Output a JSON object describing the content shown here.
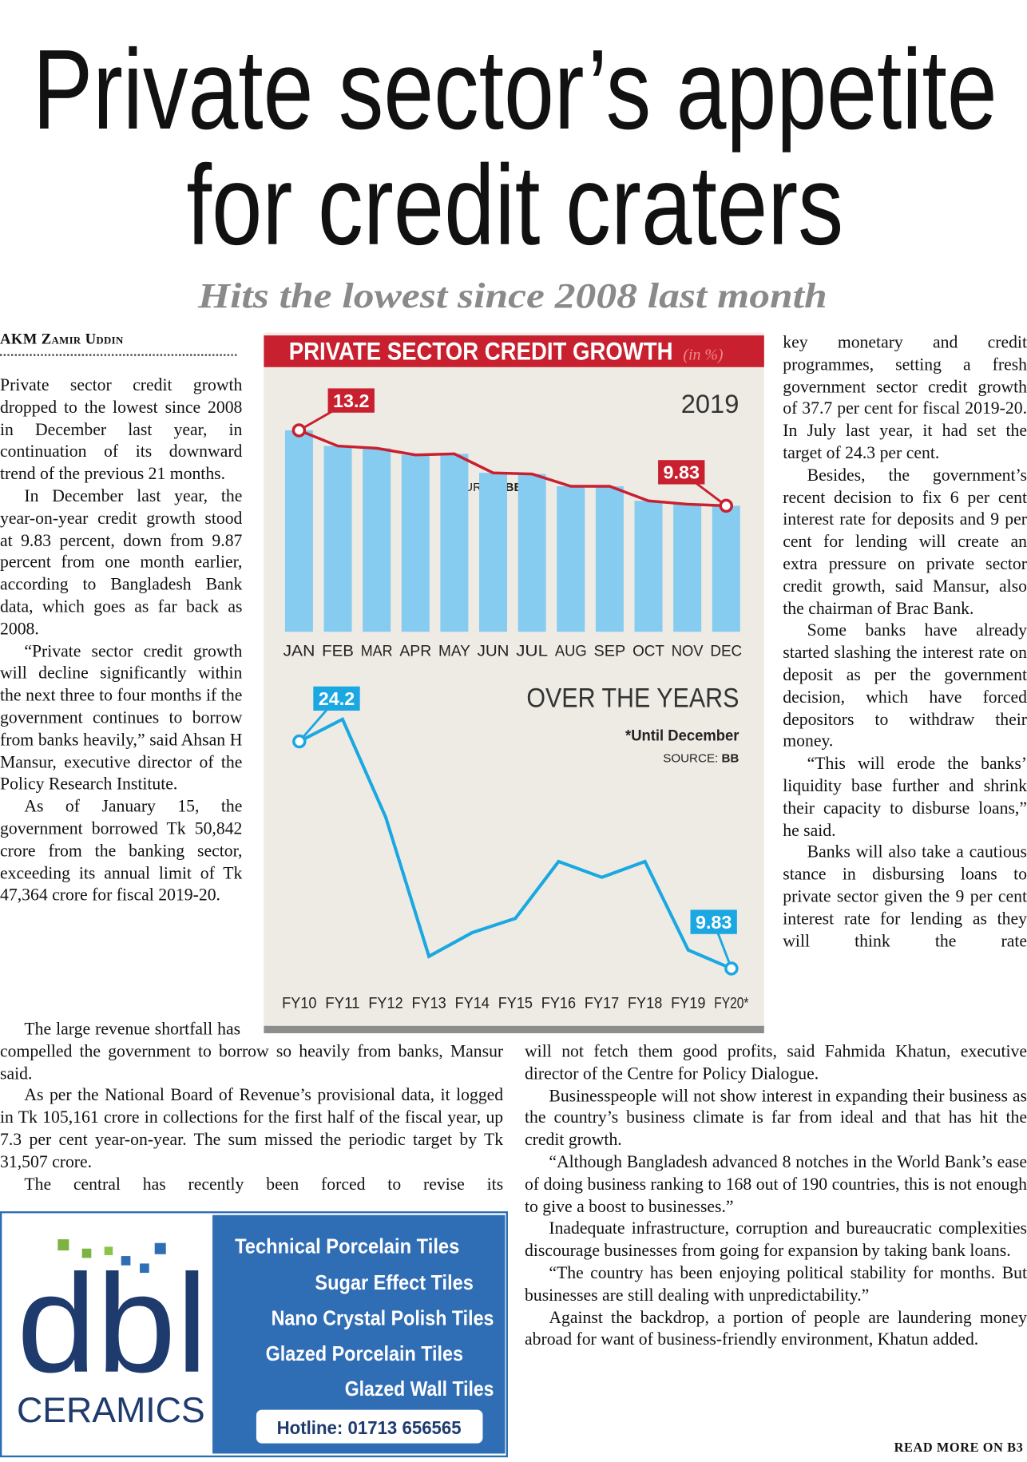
{
  "header": {
    "title_lines": [
      "Private sector’s appetite",
      "for credit craters"
    ],
    "subtitle": "Hits the lowest since 2008 last month"
  },
  "article": {
    "byline": "AKM Zamir Uddin",
    "left_column": [
      "Private sector credit growth dropped to the lowest since 2008 in December last year, in continuation of its downward trend of the previous 21 months.",
      "In December last year, the year-on-year credit growth stood at 9.83 percent, down from 9.87 percent from one month earlier, according to Bangladesh Bank data, which goes as far back as 2008.",
      "“Private sector credit growth will decline significantly within the next three to four months if the government continues to borrow from banks heavily,” said Ahsan H Mansur, executive director of the Policy Research Institute.",
      "As of January 15, the government borrowed Tk 50,842 crore from the banking sector, exceeding its annual limit of Tk 47,364 crore for fiscal 2019-20."
    ],
    "lower_left": [
      "The large revenue shortfall has compelled the government to borrow so heavily from banks, Mansur said.",
      "As per the National Board of Revenue’s provisional data, it logged in Tk 105,161 crore in collections for the first half of the fiscal year, up 7.3 per cent year-on-year. The sum missed the periodic target by Tk 31,507 crore.",
      "The central has recently been forced to revise its"
    ],
    "right_column": [
      "key monetary and credit programmes, setting a fresh government sector credit growth of 37.7 per cent for fiscal 2019-20. In July last year, it had set the target of 24.3 per cent.",
      "Besides, the government’s recent decision to fix 6 per cent interest rate for deposits and 9 per cent for lending will create an extra pressure on private sector credit growth, said Mansur, also the chairman of Brac Bank.",
      "Some banks have already started slashing the interest rate on deposit as per the government decision, which have forced depositors to withdraw their money.",
      "“This will erode the banks’ liquidity base further and shrink their capacity to disburse loans,” he said.",
      "Banks will also take a cautious stance in disbursing loans to private sector given the 9 per cent interest rate for lending as they will think the rate"
    ],
    "lower_right": [
      "will not fetch them good profits, said Fahmida Khatun, executive director of the Centre for Policy Dialogue.",
      "Businesspeople will not show interest in expanding their business as the country’s business climate is far from ideal and that has hit the credit growth.",
      "“Although Bangladesh advanced 8 notches in the World Bank’s ease of doing business ranking to 168 out of 190 countries, this is not enough to give a boost to businesses.”",
      "Inadequate infrastructure, corruption and bureaucratic complexities discourage businesses from going for expansion by taking bank loans.",
      "“The country has been enjoying political stability for months. But businesses are still dealing with unpredictability.”",
      "Against the backdrop, a portion of people are laundering money abroad for want of business-friendly environment, Khatun added."
    ],
    "read_more": "READ MORE ON B3"
  },
  "chart_data": [
    {
      "type": "bar_line",
      "title": "PRIVATE SECTOR CREDIT GROWTH",
      "unit": "(in %)",
      "subtitle": "2019",
      "source_label": "SOURCE:",
      "source": "BB",
      "categories": [
        "JAN",
        "FEB",
        "MAR",
        "APR",
        "MAY",
        "JUN",
        "JUL",
        "AUG",
        "SEP",
        "OCT",
        "NOV",
        "DEC"
      ],
      "values": [
        13.2,
        12.5,
        12.4,
        12.1,
        12.15,
        11.3,
        11.25,
        10.7,
        10.7,
        10.05,
        9.9,
        9.83
      ],
      "bar_color": "#86cbf0",
      "line_color": "#c8202f",
      "ylim": [
        4.2,
        14.9
      ]
    },
    {
      "type": "line",
      "title": "OVER THE YEARS",
      "note": "*Until December",
      "source_label": "SOURCE:",
      "source": "BB",
      "categories": [
        "FY10",
        "FY11",
        "FY12",
        "FY13",
        "FY14",
        "FY15",
        "FY16",
        "FY17",
        "FY18",
        "FY19",
        "FY20*"
      ],
      "values": [
        24.2,
        25.6,
        19.4,
        10.6,
        12.1,
        13.0,
        16.6,
        15.6,
        16.6,
        11.0,
        9.83
      ],
      "color": "#1ba8e2",
      "ylim": [
        9.5,
        29.9
      ]
    }
  ],
  "ad": {
    "logo": "dbl",
    "brand": "CERAMICS",
    "items": [
      "Technical Porcelain Tiles",
      "Sugar Effect Tiles",
      "Nano Crystal Polish Tiles",
      "Glazed Porcelain Tiles",
      "Glazed Wall Tiles"
    ],
    "hotline": "Hotline: 01713 656565"
  }
}
